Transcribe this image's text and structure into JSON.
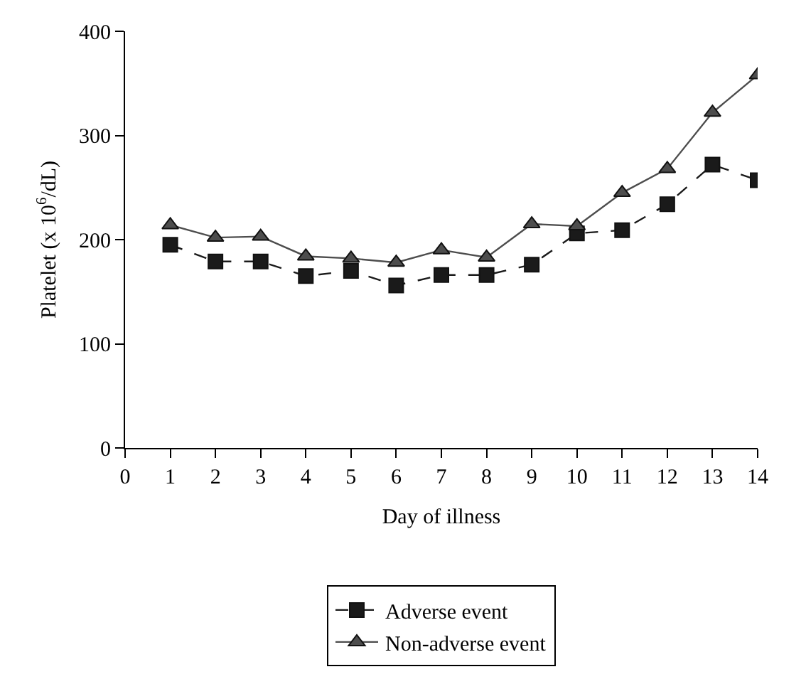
{
  "chart_data": {
    "type": "line",
    "xlabel": "Day of illness",
    "ylabel": "Platelet (x 10$^{6}$/dL)",
    "x": [
      1,
      2,
      3,
      4,
      5,
      6,
      7,
      8,
      9,
      10,
      11,
      12,
      13,
      14
    ],
    "series": [
      {
        "name": "Adverse event",
        "color": "#1a1a1a",
        "marker": "square",
        "line_style": "dashed",
        "values": [
          195,
          179,
          179,
          165,
          170,
          156,
          166,
          166,
          176,
          206,
          209,
          234,
          272,
          257
        ]
      },
      {
        "name": "Non-adverse event",
        "color": "#4d4d4d",
        "marker": "triangle",
        "line_style": "solid",
        "values": [
          214,
          202,
          203,
          184,
          182,
          178,
          190,
          183,
          215,
          213,
          245,
          268,
          322,
          358
        ]
      }
    ],
    "xlim": [
      0,
      14
    ],
    "xticks": [
      0,
      1,
      2,
      3,
      4,
      5,
      6,
      7,
      8,
      9,
      10,
      11,
      12,
      13,
      14
    ],
    "ylim": [
      0,
      400
    ],
    "yticks": [
      0,
      100,
      200,
      300,
      400
    ],
    "grid": false,
    "legend": "bottom"
  }
}
